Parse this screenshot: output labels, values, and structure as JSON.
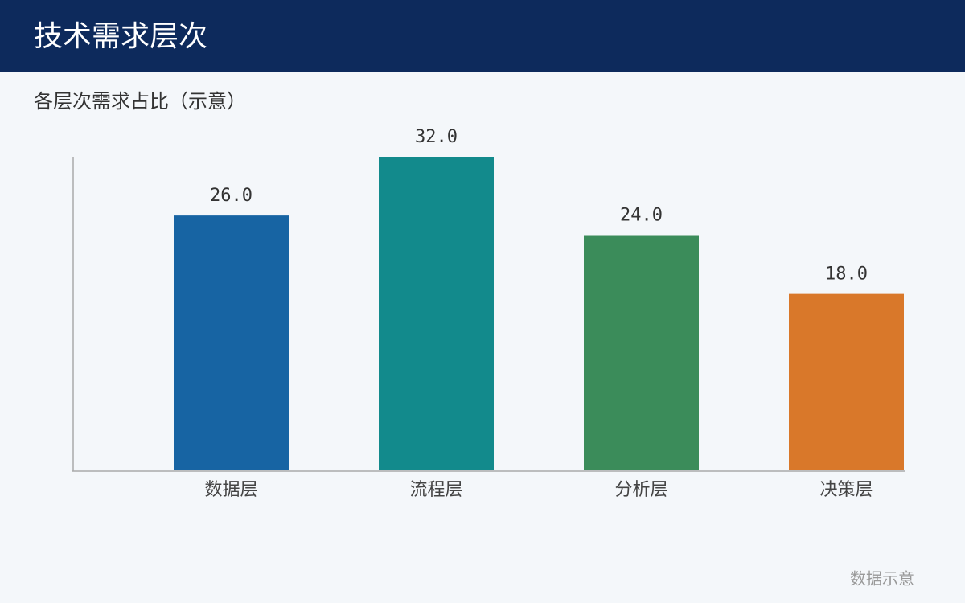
{
  "header": {
    "title": "技术需求层次"
  },
  "chart_data": {
    "type": "bar",
    "title": "各层次需求占比（示意）",
    "categories": [
      "数据层",
      "流程层",
      "分析层",
      "决策层"
    ],
    "values": [
      26,
      32,
      24,
      18
    ],
    "value_labels": [
      "26.0",
      "32.0",
      "24.0",
      "18.0"
    ],
    "colors": [
      "#1764a3",
      "#128a8c",
      "#3b8c5a",
      "#d9782a"
    ],
    "ylim": [
      0,
      32
    ],
    "grid": false
  },
  "footer": {
    "note": "数据示意"
  }
}
